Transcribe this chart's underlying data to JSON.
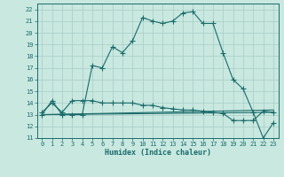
{
  "title": "",
  "xlabel": "Humidex (Indice chaleur)",
  "background_color": "#c8e8e0",
  "grid_color": "#a8ccc4",
  "line_color": "#1a6b6b",
  "xlim": [
    -0.5,
    23.5
  ],
  "ylim": [
    11,
    22.5
  ],
  "yticks": [
    11,
    12,
    13,
    14,
    15,
    16,
    17,
    18,
    19,
    20,
    21,
    22
  ],
  "xticks": [
    0,
    1,
    2,
    3,
    4,
    5,
    6,
    7,
    8,
    9,
    10,
    11,
    12,
    13,
    14,
    15,
    16,
    17,
    18,
    19,
    20,
    21,
    22,
    23
  ],
  "series1_x": [
    0,
    1,
    2,
    3,
    4,
    5,
    6,
    7,
    8,
    9,
    10,
    11,
    12,
    13,
    14,
    15,
    16,
    17,
    18,
    19,
    20,
    21,
    22,
    23
  ],
  "series1_y": [
    13.0,
    14.2,
    13.0,
    13.0,
    13.0,
    17.2,
    17.0,
    18.8,
    18.3,
    19.3,
    21.3,
    21.0,
    20.8,
    21.0,
    21.7,
    21.8,
    20.8,
    20.8,
    18.3,
    16.0,
    15.2,
    13.2,
    11.0,
    12.3
  ],
  "series2_x": [
    0,
    1,
    2,
    3,
    4,
    5,
    6,
    7,
    8,
    9,
    10,
    11,
    12,
    13,
    14,
    15,
    16,
    17,
    18,
    19,
    20,
    21,
    22,
    23
  ],
  "series2_y": [
    13.2,
    14.0,
    13.2,
    14.2,
    14.2,
    14.2,
    14.0,
    14.0,
    14.0,
    14.0,
    13.8,
    13.8,
    13.6,
    13.5,
    13.4,
    13.4,
    13.3,
    13.2,
    13.1,
    12.5,
    12.5,
    12.5,
    13.3,
    13.2
  ],
  "series3_x": [
    0,
    23
  ],
  "series3_y": [
    13.0,
    13.4
  ],
  "series4_x": [
    0,
    23
  ],
  "series4_y": [
    13.0,
    13.2
  ]
}
